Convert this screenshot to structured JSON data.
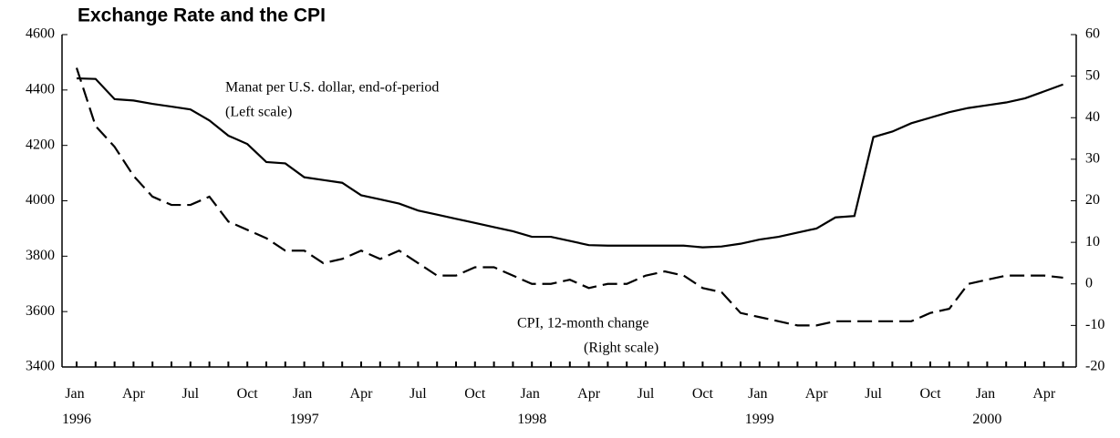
{
  "chart_data": {
    "type": "line",
    "title": "Exchange Rate and the CPI",
    "annotations": [
      "Manat per U.S. dollar, end-of-period",
      "(Left scale)",
      "CPI, 12-month change",
      "(Right scale)"
    ],
    "categories": [
      "Jan 1996",
      null,
      null,
      "Apr",
      null,
      null,
      "Jul",
      null,
      null,
      "Oct",
      null,
      null,
      "Jan 1997",
      null,
      null,
      "Apr",
      null,
      null,
      "Jul",
      null,
      null,
      "Oct",
      null,
      null,
      "Jan 1998",
      null,
      null,
      "Apr",
      null,
      null,
      "Jul",
      null,
      null,
      "Oct",
      null,
      null,
      "Jan 1999",
      null,
      null,
      "Apr",
      null,
      null,
      "Jul",
      null,
      null,
      "Oct",
      null,
      null,
      "Jan 2000",
      null,
      null,
      "Apr",
      null
    ],
    "series": [
      {
        "name": "Manat per U.S. dollar, end-of-period",
        "color": "#000000",
        "dashed": false,
        "values": [
          4442,
          4440,
          4367,
          4362,
          4350,
          4340,
          4330,
          4290,
          4235,
          4205,
          4140,
          4135,
          4085,
          4075,
          4065,
          4020,
          4005,
          3990,
          3965,
          3950,
          3935,
          3920,
          3905,
          3890,
          3870,
          3870,
          3855,
          3840,
          3838,
          3838,
          3838,
          3838,
          3838,
          3832,
          3835,
          3845,
          3860,
          3870,
          3885,
          3900,
          3940,
          3945,
          4230,
          4250,
          4280,
          4300,
          4320,
          4335,
          4345,
          4355,
          4370,
          4395,
          4420
        ]
      },
      {
        "name": "CPI, 12-month change",
        "color": "#000000",
        "dashed": true,
        "axis": "y2",
        "values": [
          52,
          38,
          33,
          26,
          21,
          19,
          19,
          21,
          15,
          13,
          11,
          8,
          8,
          5,
          6,
          8,
          6,
          8,
          5,
          2,
          2,
          4,
          4,
          2,
          0,
          0,
          1,
          -1,
          0,
          0,
          2,
          3,
          2,
          -1,
          -2,
          -7,
          -8,
          -9,
          -10,
          -10,
          -9,
          -9,
          -9,
          -9,
          -9,
          -7,
          -6,
          0,
          1,
          2,
          2,
          2,
          1.5
        ]
      }
    ],
    "ylim": [
      3400,
      4600
    ],
    "yticks": [
      3400,
      3600,
      3800,
      4000,
      4200,
      4400,
      4600
    ],
    "y2lim": [
      -20,
      60
    ],
    "y2ticks": [
      -20,
      -10,
      0,
      10,
      20,
      30,
      40,
      50,
      60
    ],
    "grid": false
  }
}
